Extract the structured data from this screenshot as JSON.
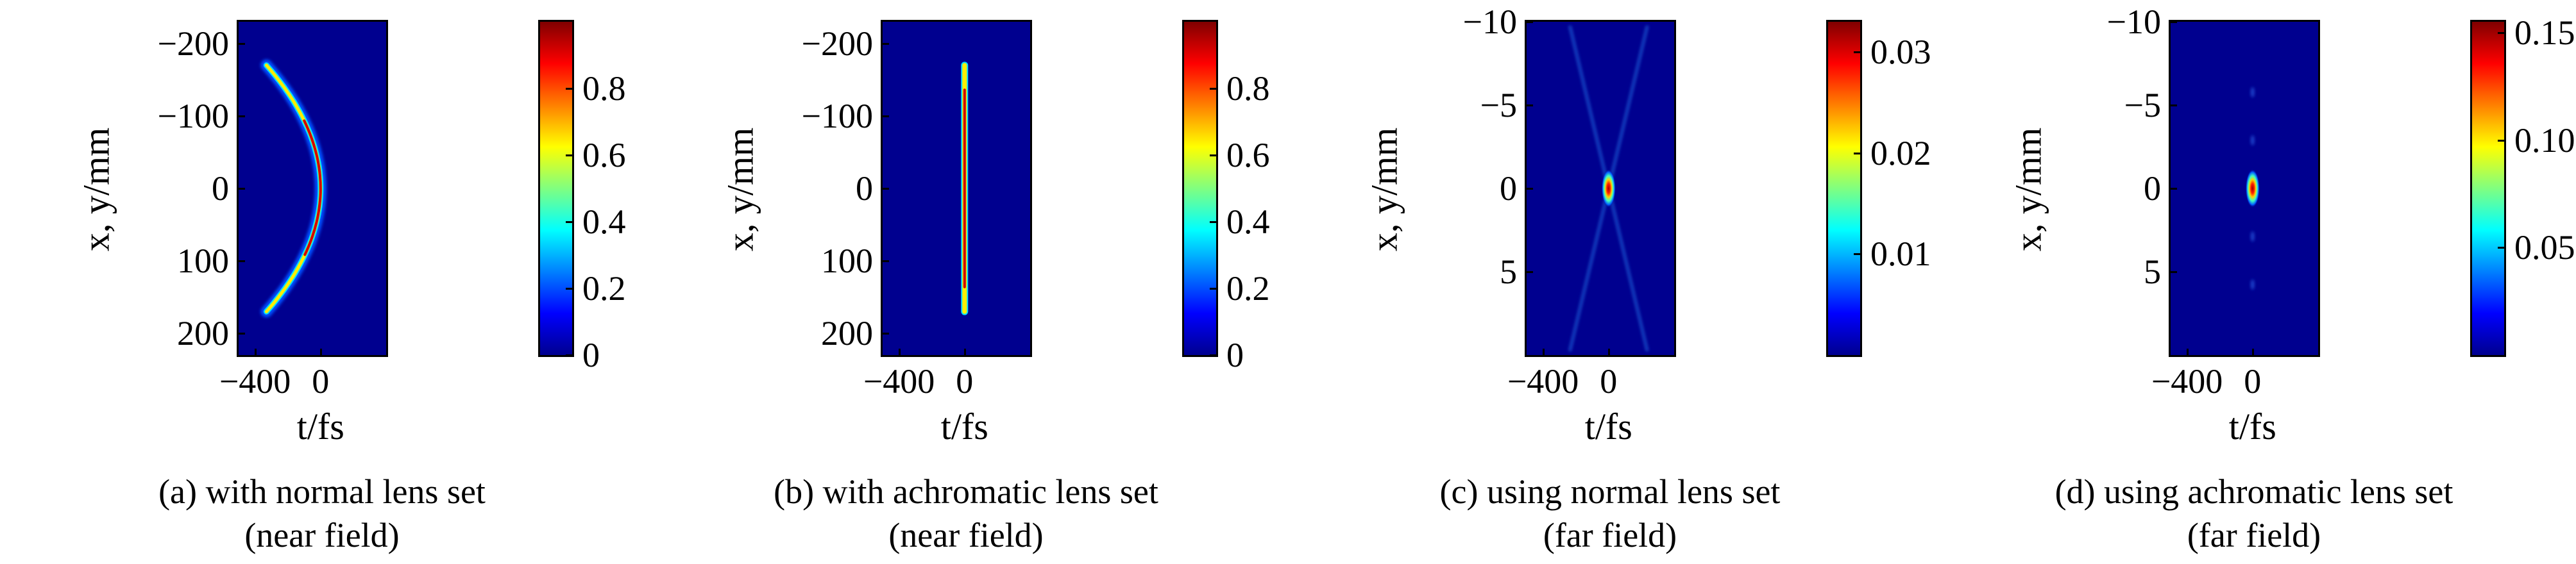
{
  "chart_data": [
    {
      "type": "heatmap",
      "xlabel": "t/fs",
      "ylabel": "x, y/mm",
      "x_ticks": [
        "−400",
        "0"
      ],
      "y_ticks": [
        "−200",
        "−100",
        "0",
        "100",
        "200"
      ],
      "xlim": [
        -500,
        400
      ],
      "ylim": [
        -230,
        230
      ],
      "colorbar_ticks": [
        "0",
        "0.2",
        "0.4",
        "0.6",
        "0.8"
      ],
      "colorbar_range": [
        0,
        1
      ],
      "shape": "parabola",
      "curve": {
        "apex_t": 0,
        "t_at_edge": -330,
        "edge_y": 170
      },
      "caption_line1": "(a) with normal lens set",
      "caption_line2": "(near field)"
    },
    {
      "type": "heatmap",
      "xlabel": "t/fs",
      "ylabel": "x, y/mm",
      "x_ticks": [
        "−400",
        "0"
      ],
      "y_ticks": [
        "−200",
        "−100",
        "0",
        "100",
        "200"
      ],
      "xlim": [
        -500,
        400
      ],
      "ylim": [
        -230,
        230
      ],
      "colorbar_ticks": [
        "0",
        "0.2",
        "0.4",
        "0.6",
        "0.8"
      ],
      "colorbar_range": [
        0,
        1
      ],
      "shape": "vertical-line",
      "curve": {
        "t": 0,
        "y_extent": [
          -170,
          170
        ]
      },
      "caption_line1": "(b) with achromatic lens set",
      "caption_line2": "(near field)"
    },
    {
      "type": "heatmap",
      "xlabel": "t/fs",
      "ylabel": "x, y/mm",
      "x_ticks": [
        "−400",
        "0"
      ],
      "y_ticks": [
        "−10",
        "−5",
        "0",
        "5"
      ],
      "xlim": [
        -500,
        400
      ],
      "ylim": [
        -10,
        10
      ],
      "colorbar_ticks": [
        "0.01",
        "0.02",
        "0.03"
      ],
      "colorbar_range": [
        0,
        0.033
      ],
      "shape": "spot-x",
      "spot": {
        "t": 0,
        "y": 0,
        "peak": 0.033
      },
      "caption_line1": "(c) using normal lens set",
      "caption_line2": "(far field)"
    },
    {
      "type": "heatmap",
      "xlabel": "t/fs",
      "ylabel": "x, y/mm",
      "x_ticks": [
        "−400",
        "0"
      ],
      "y_ticks": [
        "−10",
        "−5",
        "0",
        "5"
      ],
      "xlim": [
        -500,
        400
      ],
      "ylim": [
        -10,
        10
      ],
      "colorbar_ticks": [
        "0.05",
        "0.10",
        "0.15"
      ],
      "colorbar_range": [
        0,
        0.155
      ],
      "shape": "spot",
      "spot": {
        "t": 0,
        "y": 0,
        "peak": 0.155
      },
      "caption_line1": "(d) using achromatic lens set",
      "caption_line2": "(far field)"
    }
  ]
}
